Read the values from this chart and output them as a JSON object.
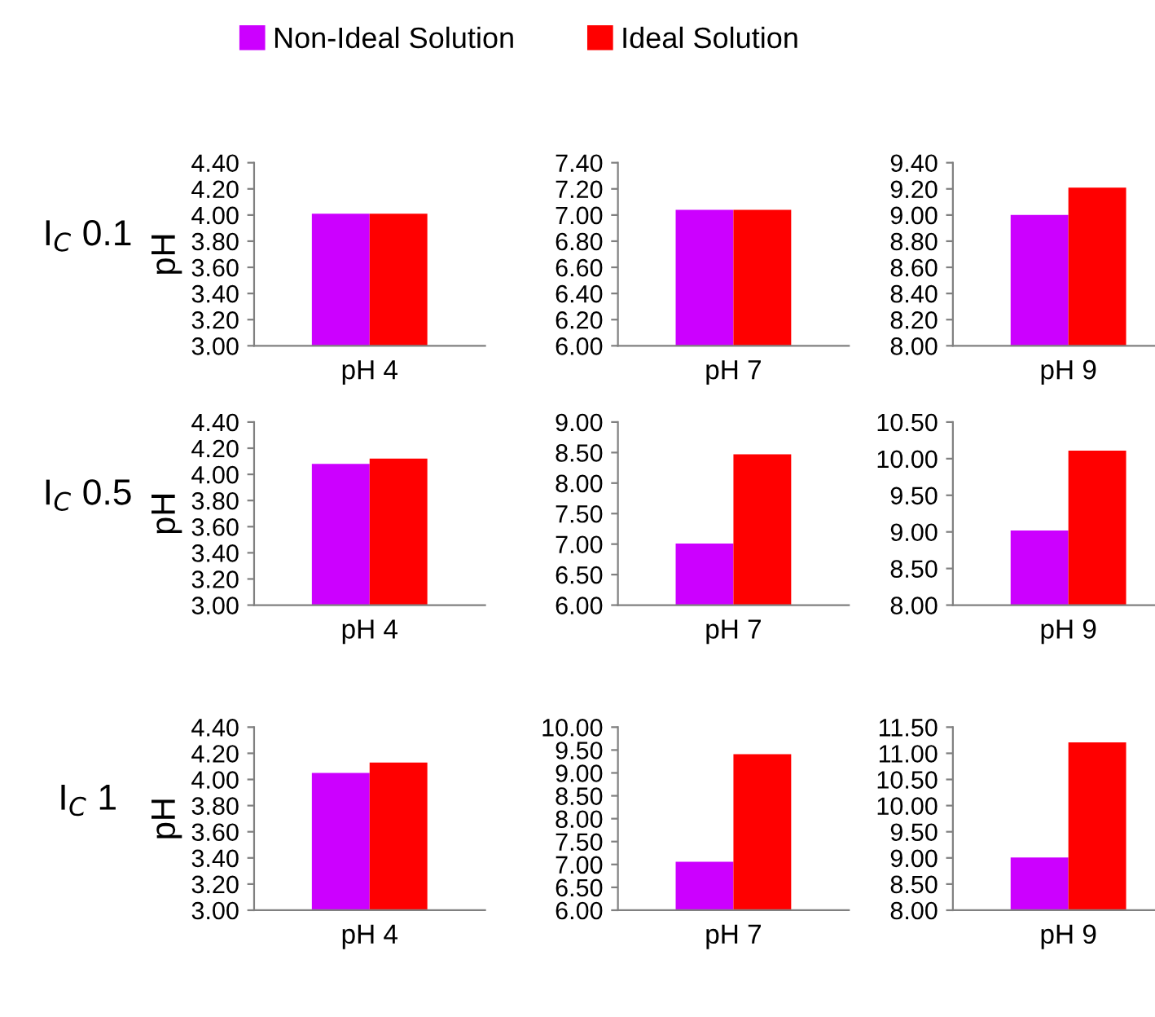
{
  "chart_data": [
    {
      "type": "bar",
      "categories": [
        "pH 4"
      ],
      "ylabel": "pH",
      "annotations": [
        "I$_{C}$ 0.1"
      ],
      "legend": "top",
      "ylim": [
        3.0,
        4.4
      ],
      "yticks": [
        {
          "value": 3.0,
          "label": "3.00"
        },
        {
          "value": 3.2,
          "label": "3.20"
        },
        {
          "value": 3.4,
          "label": "3.40"
        },
        {
          "value": 3.6,
          "label": "3.60"
        },
        {
          "value": 3.8,
          "label": "3.80"
        },
        {
          "value": 4.0,
          "label": "4.00"
        },
        {
          "value": 4.2,
          "label": "4.20"
        },
        {
          "value": 4.4,
          "label": "4.40"
        }
      ],
      "series": [
        {
          "name": "Non-Ideal Solution",
          "color": "#cc00ff",
          "values": [
            4.01
          ]
        },
        {
          "name": "Ideal Solution",
          "color": "#ff0000",
          "values": [
            4.01
          ]
        }
      ]
    },
    {
      "type": "bar",
      "categories": [
        "pH 7"
      ],
      "ylim": [
        6.0,
        7.4
      ],
      "yticks": [
        {
          "value": 6.0,
          "label": "6.00"
        },
        {
          "value": 6.2,
          "label": "6.20"
        },
        {
          "value": 6.4,
          "label": "6.40"
        },
        {
          "value": 6.6,
          "label": "6.60"
        },
        {
          "value": 6.8,
          "label": "6.80"
        },
        {
          "value": 7.0,
          "label": "7.00"
        },
        {
          "value": 7.2,
          "label": "7.20"
        },
        {
          "value": 7.4,
          "label": "7.40"
        }
      ],
      "series": [
        {
          "color": "#cc00ff",
          "values": [
            7.04
          ]
        },
        {
          "color": "#ff0000",
          "values": [
            7.04
          ]
        }
      ]
    },
    {
      "type": "bar",
      "categories": [
        "pH 9"
      ],
      "ylim": [
        8.0,
        9.4
      ],
      "yticks": [
        {
          "value": 8.0,
          "label": "8.00"
        },
        {
          "value": 8.2,
          "label": "8.20"
        },
        {
          "value": 8.4,
          "label": "8.40"
        },
        {
          "value": 8.6,
          "label": "8.60"
        },
        {
          "value": 8.8,
          "label": "8.80"
        },
        {
          "value": 9.0,
          "label": "9.00"
        },
        {
          "value": 9.2,
          "label": "9.20"
        },
        {
          "value": 9.4,
          "label": "9.40"
        }
      ],
      "series": [
        {
          "color": "#cc00ff",
          "values": [
            9.0
          ]
        },
        {
          "color": "#ff0000",
          "values": [
            9.21
          ]
        }
      ]
    },
    {
      "type": "bar",
      "categories": [
        "pH 4"
      ],
      "ylabel": "pH",
      "annotations": [
        "I$_{C}$ 0.5"
      ],
      "ylim": [
        3.0,
        4.4
      ],
      "yticks": [
        {
          "value": 3.0,
          "label": "3.00"
        },
        {
          "value": 3.2,
          "label": "3.20"
        },
        {
          "value": 3.4,
          "label": "3.40"
        },
        {
          "value": 3.6,
          "label": "3.60"
        },
        {
          "value": 3.8,
          "label": "3.80"
        },
        {
          "value": 4.0,
          "label": "4.00"
        },
        {
          "value": 4.2,
          "label": "4.20"
        },
        {
          "value": 4.4,
          "label": "4.40"
        }
      ],
      "series": [
        {
          "color": "#cc00ff",
          "values": [
            4.08
          ]
        },
        {
          "color": "#ff0000",
          "values": [
            4.12
          ]
        }
      ]
    },
    {
      "type": "bar",
      "categories": [
        "pH 7"
      ],
      "ylim": [
        6.0,
        9.0
      ],
      "yticks": [
        {
          "value": 6.0,
          "label": "6.00"
        },
        {
          "value": 6.5,
          "label": "6.50"
        },
        {
          "value": 7.0,
          "label": "7.00"
        },
        {
          "value": 7.5,
          "label": "7.50"
        },
        {
          "value": 8.0,
          "label": "8.00"
        },
        {
          "value": 8.5,
          "label": "8.50"
        },
        {
          "value": 9.0,
          "label": "9.00"
        }
      ],
      "series": [
        {
          "color": "#cc00ff",
          "values": [
            7.01
          ]
        },
        {
          "color": "#ff0000",
          "values": [
            8.47
          ]
        }
      ]
    },
    {
      "type": "bar",
      "categories": [
        "pH 9"
      ],
      "ylim": [
        8.0,
        10.5
      ],
      "yticks": [
        {
          "value": 8.0,
          "label": "8.00"
        },
        {
          "value": 8.5,
          "label": "8.50"
        },
        {
          "value": 9.0,
          "label": "9.00"
        },
        {
          "value": 9.5,
          "label": "9.50"
        },
        {
          "value": 10.0,
          "label": "10.00"
        },
        {
          "value": 10.5,
          "label": "10.50"
        }
      ],
      "series": [
        {
          "color": "#cc00ff",
          "values": [
            9.02
          ]
        },
        {
          "color": "#ff0000",
          "values": [
            10.11
          ]
        }
      ]
    },
    {
      "type": "bar",
      "categories": [
        "pH 4"
      ],
      "ylabel": "pH",
      "annotations": [
        "I$_{C}$ 1"
      ],
      "ylim": [
        3.0,
        4.4
      ],
      "yticks": [
        {
          "value": 3.0,
          "label": "3.00"
        },
        {
          "value": 3.2,
          "label": "3.20"
        },
        {
          "value": 3.4,
          "label": "3.40"
        },
        {
          "value": 3.6,
          "label": "3.60"
        },
        {
          "value": 3.8,
          "label": "3.80"
        },
        {
          "value": 4.0,
          "label": "4.00"
        },
        {
          "value": 4.2,
          "label": "4.20"
        },
        {
          "value": 4.4,
          "label": "4.40"
        }
      ],
      "series": [
        {
          "color": "#cc00ff",
          "values": [
            4.05
          ]
        },
        {
          "color": "#ff0000",
          "values": [
            4.13
          ]
        }
      ]
    },
    {
      "type": "bar",
      "categories": [
        "pH 7"
      ],
      "ylim": [
        6.0,
        10.0
      ],
      "yticks": [
        {
          "value": 6.0,
          "label": "6.00"
        },
        {
          "value": 6.5,
          "label": "6.50"
        },
        {
          "value": 7.0,
          "label": "7.00"
        },
        {
          "value": 7.5,
          "label": "7.50"
        },
        {
          "value": 8.0,
          "label": "8.00"
        },
        {
          "value": 8.5,
          "label": "8.50"
        },
        {
          "value": 9.0,
          "label": "9.00"
        },
        {
          "value": 9.5,
          "label": "9.50"
        },
        {
          "value": 10.0,
          "label": "10.00"
        }
      ],
      "series": [
        {
          "color": "#cc00ff",
          "values": [
            7.06
          ]
        },
        {
          "color": "#ff0000",
          "values": [
            9.41
          ]
        }
      ]
    },
    {
      "type": "bar",
      "categories": [
        "pH 9"
      ],
      "ylim": [
        8.0,
        11.5
      ],
      "yticks": [
        {
          "value": 8.0,
          "label": "8.00"
        },
        {
          "value": 8.5,
          "label": "8.50"
        },
        {
          "value": 9.0,
          "label": "9.00"
        },
        {
          "value": 9.5,
          "label": "9.50"
        },
        {
          "value": 10.0,
          "label": "10.00"
        },
        {
          "value": 10.5,
          "label": "10.50"
        },
        {
          "value": 11.0,
          "label": "11.00"
        },
        {
          "value": 11.5,
          "label": "11.50"
        }
      ],
      "series": [
        {
          "color": "#cc00ff",
          "values": [
            9.01
          ]
        },
        {
          "color": "#ff0000",
          "values": [
            11.21
          ]
        }
      ]
    }
  ]
}
